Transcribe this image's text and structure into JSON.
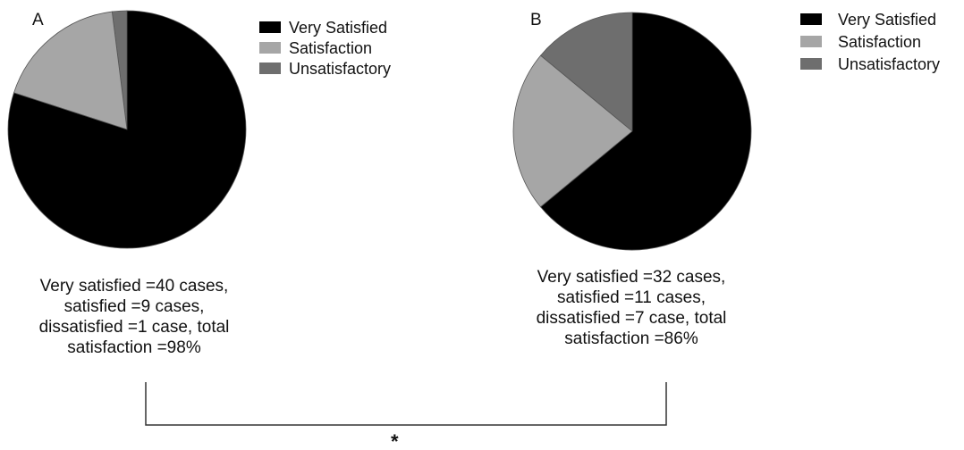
{
  "chart_data": [
    {
      "type": "pie",
      "panel_label": "A",
      "categories": [
        "Very Satisfied",
        "Satisfaction",
        "Unsatisfactory"
      ],
      "values": [
        40,
        9,
        1
      ],
      "colors": [
        "#000000",
        "#a6a6a6",
        "#6e6e6e"
      ],
      "legend": [
        "Very Satisfied",
        "Satisfaction",
        "Unsatisfactory"
      ],
      "legend_position": "top-right",
      "caption": [
        "Very satisfied =40 cases,",
        "satisfied =9 cases,",
        "dissatisfied =1 case, total",
        "satisfaction =98%"
      ]
    },
    {
      "type": "pie",
      "panel_label": "B",
      "categories": [
        "Very Satisfied",
        "Satisfaction",
        "Unsatisfactory"
      ],
      "values": [
        32,
        11,
        7
      ],
      "colors": [
        "#000000",
        "#a6a6a6",
        "#6e6e6e"
      ],
      "legend": [
        "Very Satisfied",
        "Satisfaction",
        "Unsatisfactory"
      ],
      "legend_position": "top-right",
      "caption": [
        "Very satisfied =32 cases,",
        "satisfied =11 cases,",
        "dissatisfied =7 case, total",
        "satisfaction =86%"
      ]
    }
  ],
  "comparison": {
    "significance_marker": "*"
  }
}
